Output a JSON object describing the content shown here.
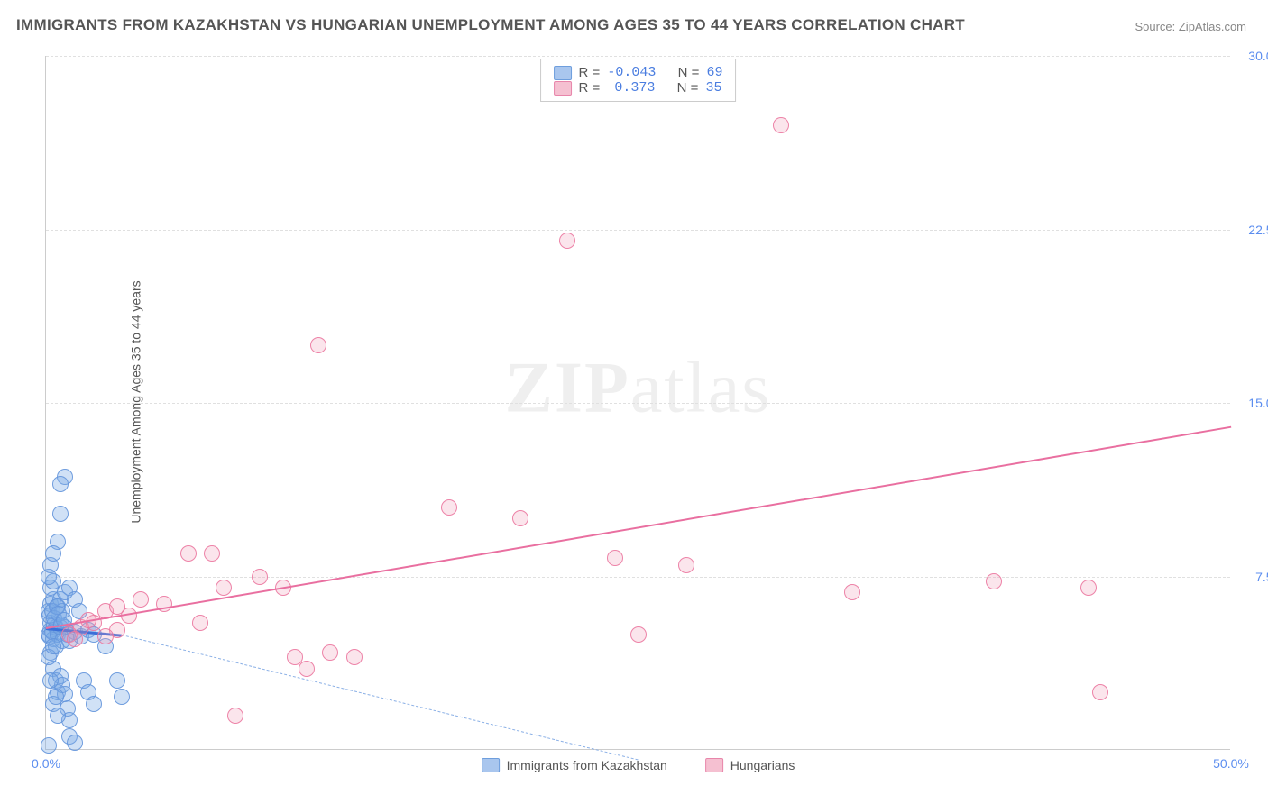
{
  "title": "IMMIGRANTS FROM KAZAKHSTAN VS HUNGARIAN UNEMPLOYMENT AMONG AGES 35 TO 44 YEARS CORRELATION CHART",
  "source": "Source: ZipAtlas.com",
  "watermark_a": "ZIP",
  "watermark_b": "atlas",
  "chart": {
    "type": "scatter",
    "xlim": [
      0,
      50
    ],
    "ylim": [
      0,
      30
    ],
    "x_ticks": [
      0,
      50
    ],
    "x_tick_labels": [
      "0.0%",
      "50.0%"
    ],
    "y_ticks": [
      7.5,
      15.0,
      22.5,
      30.0
    ],
    "y_tick_labels": [
      "7.5%",
      "15.0%",
      "22.5%",
      "30.0%"
    ],
    "y_axis_title": "Unemployment Among Ages 35 to 44 years",
    "background_color": "#ffffff",
    "grid_color": "#e0e0e0",
    "point_radius": 9,
    "series": [
      {
        "name": "Immigrants from Kazakhstan",
        "color_fill": "rgba(120,170,230,0.35)",
        "color_stroke": "rgba(100,150,220,0.9)",
        "swatch": "#a9c6ee",
        "swatch_border": "#6e9edd",
        "R": "-0.043",
        "N": "69",
        "trend": {
          "x1": 0,
          "y1": 5.3,
          "x2": 3.2,
          "y2": 5.0,
          "width": 2.5,
          "color": "#3a6fd8",
          "dashed": false
        },
        "trend_ext": {
          "x1": 3.2,
          "y1": 5.0,
          "x2": 25,
          "y2": -0.4,
          "width": 1.2,
          "color": "#8bb0e6",
          "dashed": true
        },
        "points": [
          [
            0.1,
            5.0
          ],
          [
            0.2,
            5.2
          ],
          [
            0.3,
            4.8
          ],
          [
            0.2,
            5.5
          ],
          [
            0.4,
            5.3
          ],
          [
            0.15,
            4.9
          ],
          [
            0.25,
            5.1
          ],
          [
            0.35,
            5.4
          ],
          [
            0.1,
            6.0
          ],
          [
            0.2,
            6.3
          ],
          [
            0.3,
            6.5
          ],
          [
            0.2,
            4.2
          ],
          [
            0.4,
            4.5
          ],
          [
            0.5,
            5.0
          ],
          [
            0.6,
            5.3
          ],
          [
            0.7,
            4.7
          ],
          [
            0.3,
            3.5
          ],
          [
            0.4,
            3.0
          ],
          [
            0.5,
            2.5
          ],
          [
            0.6,
            3.2
          ],
          [
            0.7,
            2.8
          ],
          [
            0.8,
            2.4
          ],
          [
            0.9,
            1.8
          ],
          [
            1.0,
            1.3
          ],
          [
            1.0,
            0.6
          ],
          [
            1.2,
            0.3
          ],
          [
            0.2,
            7.0
          ],
          [
            0.3,
            7.3
          ],
          [
            0.1,
            7.5
          ],
          [
            0.2,
            8.0
          ],
          [
            0.5,
            6.2
          ],
          [
            0.6,
            6.5
          ],
          [
            0.7,
            6.0
          ],
          [
            0.8,
            6.8
          ],
          [
            0.3,
            2.0
          ],
          [
            0.4,
            2.3
          ],
          [
            0.5,
            1.5
          ],
          [
            0.2,
            3.0
          ],
          [
            0.1,
            4.0
          ],
          [
            0.3,
            4.5
          ],
          [
            0.8,
            5.3
          ],
          [
            0.9,
            5.0
          ],
          [
            1.0,
            4.7
          ],
          [
            1.2,
            5.1
          ],
          [
            1.5,
            4.9
          ],
          [
            1.8,
            5.2
          ],
          [
            2.0,
            5.0
          ],
          [
            2.5,
            4.5
          ],
          [
            0.15,
            5.8
          ],
          [
            0.25,
            6.0
          ],
          [
            0.35,
            5.7
          ],
          [
            0.45,
            6.2
          ],
          [
            0.55,
            5.9
          ],
          [
            0.65,
            5.4
          ],
          [
            0.75,
            5.6
          ],
          [
            0.8,
            11.8
          ],
          [
            0.6,
            11.5
          ],
          [
            0.6,
            10.2
          ],
          [
            0.5,
            9.0
          ],
          [
            0.3,
            8.5
          ],
          [
            1.0,
            7.0
          ],
          [
            1.2,
            6.5
          ],
          [
            1.4,
            6.0
          ],
          [
            1.6,
            3.0
          ],
          [
            1.8,
            2.5
          ],
          [
            2.0,
            2.0
          ],
          [
            3.0,
            3.0
          ],
          [
            3.2,
            2.3
          ],
          [
            0.1,
            0.2
          ]
        ]
      },
      {
        "name": "Hungarians",
        "color_fill": "rgba(240,150,180,0.25)",
        "color_stroke": "rgba(235,120,160,0.9)",
        "swatch": "#f5c0d1",
        "swatch_border": "#e885aa",
        "R": "0.373",
        "N": "35",
        "trend": {
          "x1": 0,
          "y1": 5.3,
          "x2": 50,
          "y2": 14.0,
          "width": 2.2,
          "color": "#e96fa0",
          "dashed": false
        },
        "points": [
          [
            1.5,
            5.3
          ],
          [
            2.0,
            5.5
          ],
          [
            2.5,
            6.0
          ],
          [
            3.0,
            5.2
          ],
          [
            3.5,
            5.8
          ],
          [
            1.0,
            5.0
          ],
          [
            1.2,
            4.8
          ],
          [
            1.8,
            5.6
          ],
          [
            4.0,
            6.5
          ],
          [
            5.0,
            6.3
          ],
          [
            6.0,
            8.5
          ],
          [
            6.5,
            5.5
          ],
          [
            7.0,
            8.5
          ],
          [
            7.5,
            7.0
          ],
          [
            9.0,
            7.5
          ],
          [
            10.0,
            7.0
          ],
          [
            10.5,
            4.0
          ],
          [
            11.0,
            3.5
          ],
          [
            12.0,
            4.2
          ],
          [
            13.0,
            4.0
          ],
          [
            8.0,
            1.5
          ],
          [
            11.5,
            17.5
          ],
          [
            17.0,
            10.5
          ],
          [
            20.0,
            10.0
          ],
          [
            22.0,
            22.0
          ],
          [
            24.0,
            8.3
          ],
          [
            25.0,
            5.0
          ],
          [
            27.0,
            8.0
          ],
          [
            31.0,
            27.0
          ],
          [
            34.0,
            6.8
          ],
          [
            40.0,
            7.3
          ],
          [
            44.0,
            7.0
          ],
          [
            44.5,
            2.5
          ],
          [
            2.5,
            4.9
          ],
          [
            3.0,
            6.2
          ]
        ]
      }
    ],
    "legend_labels": {
      "R": "R =",
      "N": "N ="
    },
    "bottom_legend": [
      "Immigrants from Kazakhstan",
      "Hungarians"
    ]
  }
}
